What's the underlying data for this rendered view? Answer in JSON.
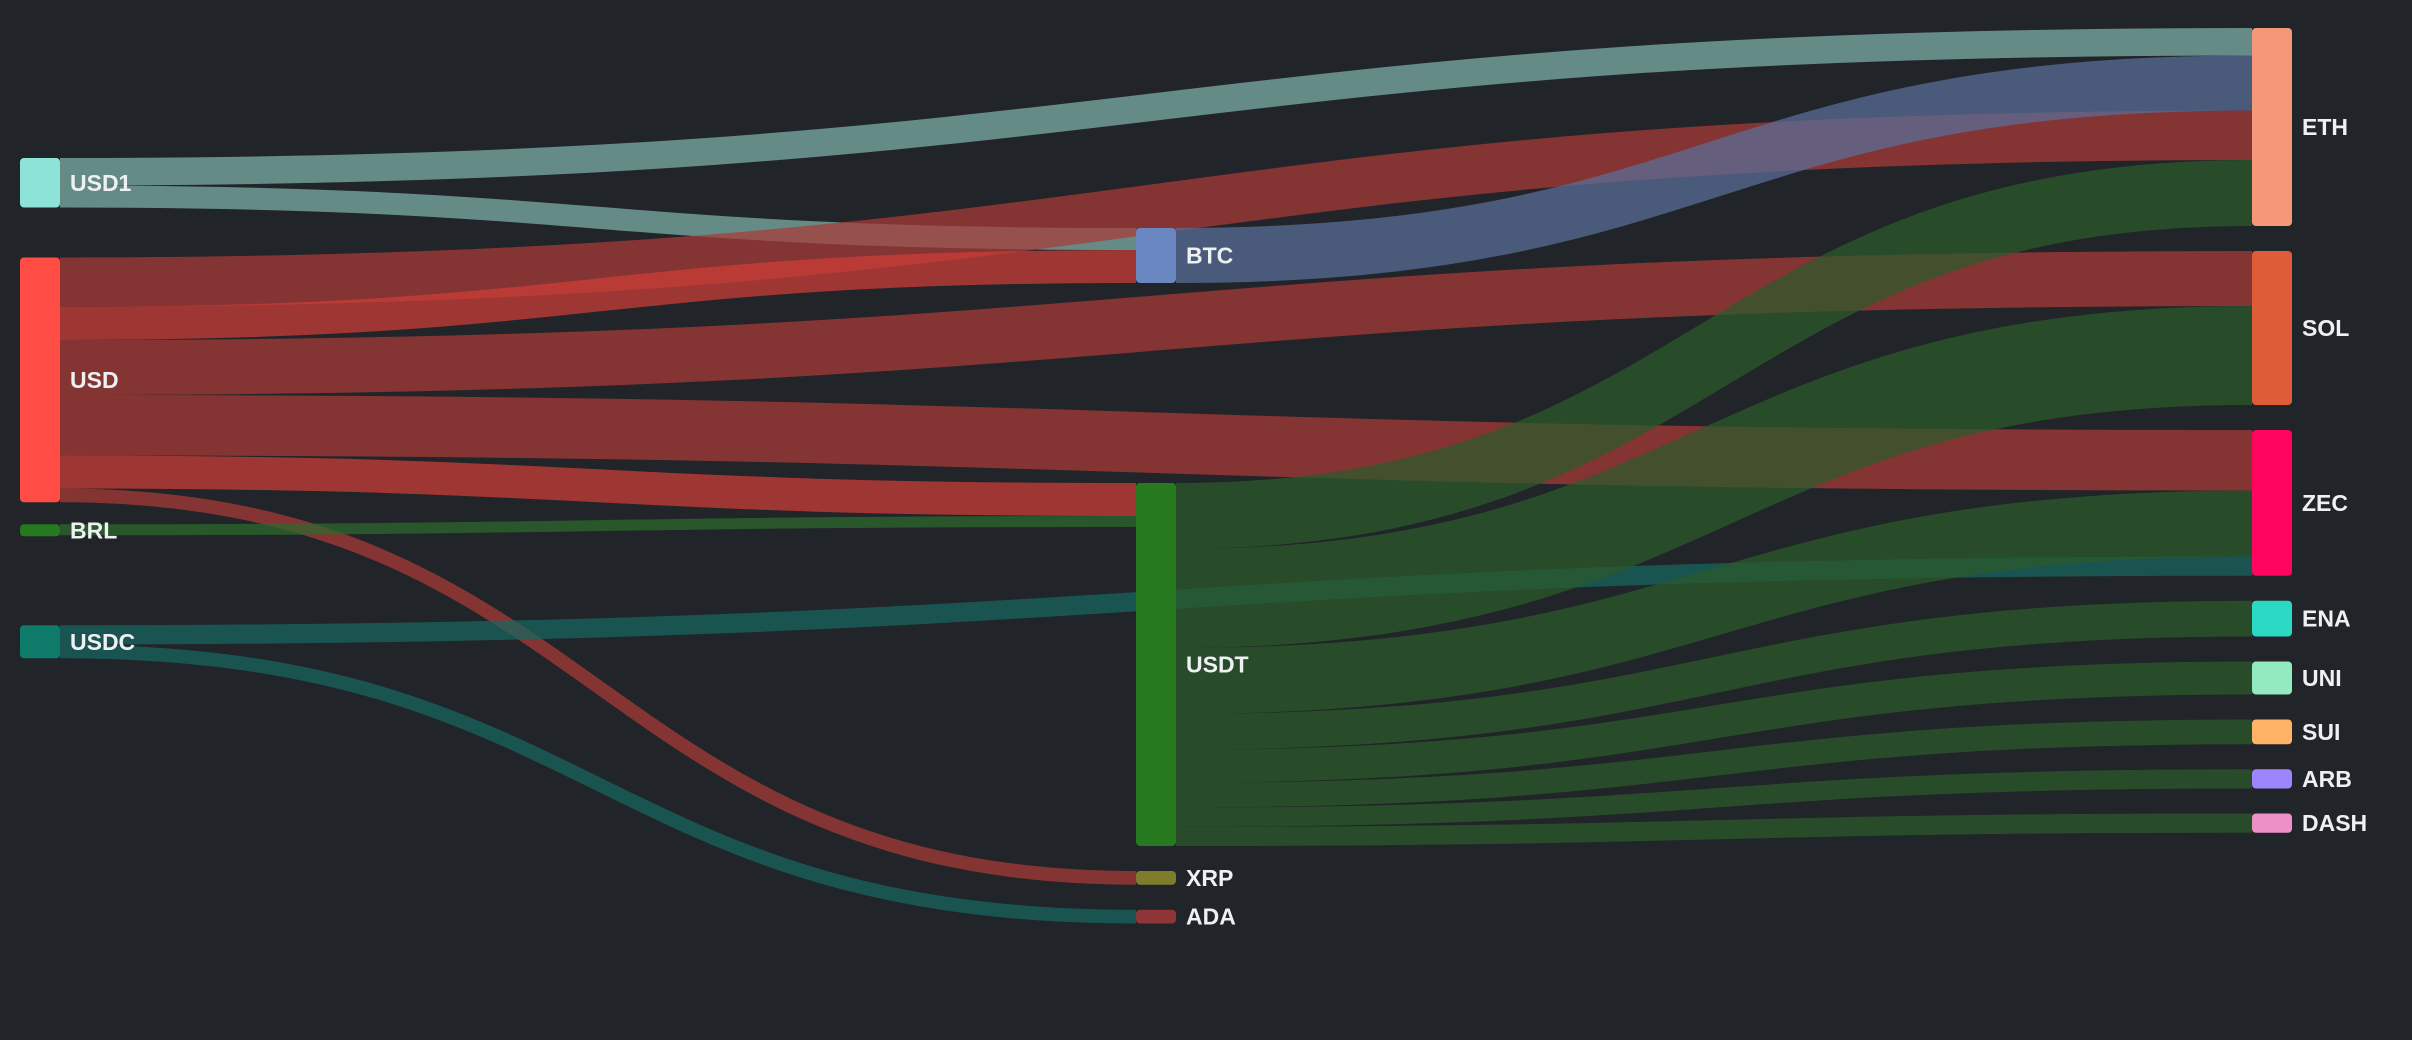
{
  "chart_data": {
    "type": "sankey",
    "nodes": [
      {
        "id": "USD1",
        "label": "USD1",
        "color": "#8ee3d8",
        "column": 0
      },
      {
        "id": "USD",
        "label": "USD",
        "color": "#ff4d45",
        "column": 0
      },
      {
        "id": "BRL",
        "label": "BRL",
        "color": "#26791f",
        "column": 0
      },
      {
        "id": "USDC",
        "label": "USDC",
        "color": "#0f7b6a",
        "column": 0
      },
      {
        "id": "BTC",
        "label": "BTC",
        "color": "#6a87c1",
        "column": 1
      },
      {
        "id": "USDT",
        "label": "USDT",
        "color": "#26791f",
        "column": 1
      },
      {
        "id": "XRP",
        "label": "XRP",
        "color": "#7f7d2c",
        "column": 1
      },
      {
        "id": "ADA",
        "label": "ADA",
        "color": "#8f3538",
        "column": 1
      },
      {
        "id": "ETH",
        "label": "ETH",
        "color": "#f5987a",
        "column": 2
      },
      {
        "id": "SOL",
        "label": "SOL",
        "color": "#de5d38",
        "column": 2
      },
      {
        "id": "ZEC",
        "label": "ZEC",
        "color": "#ff0560",
        "column": 2
      },
      {
        "id": "ENA",
        "label": "ENA",
        "color": "#2cd9c5",
        "column": 2
      },
      {
        "id": "UNI",
        "label": "UNI",
        "color": "#93e9c0",
        "column": 2
      },
      {
        "id": "SUI",
        "label": "SUI",
        "color": "#ffb366",
        "column": 2
      },
      {
        "id": "ARB",
        "label": "ARB",
        "color": "#9d85ff",
        "column": 2
      },
      {
        "id": "DASH",
        "label": "DASH",
        "color": "#ee90c8",
        "column": 2
      }
    ],
    "links": [
      {
        "source": "USD1",
        "target": "ETH",
        "value": 10,
        "color": "#7fb3ab"
      },
      {
        "source": "USD1",
        "target": "BTC",
        "value": 8,
        "color": "#7fb3ab"
      },
      {
        "source": "USD",
        "target": "ETH",
        "value": 18,
        "color": "#ab3a38"
      },
      {
        "source": "USD",
        "target": "BTC",
        "value": 12,
        "color": "#cf3d38"
      },
      {
        "source": "USD",
        "target": "SOL",
        "value": 20,
        "color": "#ab3a38"
      },
      {
        "source": "USD",
        "target": "USDT",
        "value": 12,
        "color": "#cf3d38"
      },
      {
        "source": "USD",
        "target": "ZEC",
        "value": 22,
        "color": "#ab3a38"
      },
      {
        "source": "USD",
        "target": "XRP",
        "value": 5,
        "color": "#ab3a38"
      },
      {
        "source": "BRL",
        "target": "USDT",
        "value": 4,
        "color": "#2c6a2c"
      },
      {
        "source": "USDC",
        "target": "ZEC",
        "value": 7,
        "color": "#17675f"
      },
      {
        "source": "USDC",
        "target": "ADA",
        "value": 5,
        "color": "#17675f"
      },
      {
        "source": "BTC",
        "target": "ETH",
        "value": 20,
        "color": "#5a6f9a"
      },
      {
        "source": "USDT",
        "target": "ETH",
        "value": 24,
        "color": "#2b5a2b"
      },
      {
        "source": "USDT",
        "target": "SOL",
        "value": 36,
        "color": "#2b5a2b"
      },
      {
        "source": "USDT",
        "target": "ZEC",
        "value": 24,
        "color": "#2b5a2b"
      },
      {
        "source": "USDT",
        "target": "ENA",
        "value": 13,
        "color": "#2b5a2b"
      },
      {
        "source": "USDT",
        "target": "UNI",
        "value": 12,
        "color": "#2b5a2b"
      },
      {
        "source": "USDT",
        "target": "SUI",
        "value": 9,
        "color": "#2b5a2b"
      },
      {
        "source": "USDT",
        "target": "ARB",
        "value": 7,
        "color": "#2b5a2b"
      },
      {
        "source": "USDT",
        "target": "DASH",
        "value": 7,
        "color": "#2b5a2b"
      }
    ]
  }
}
